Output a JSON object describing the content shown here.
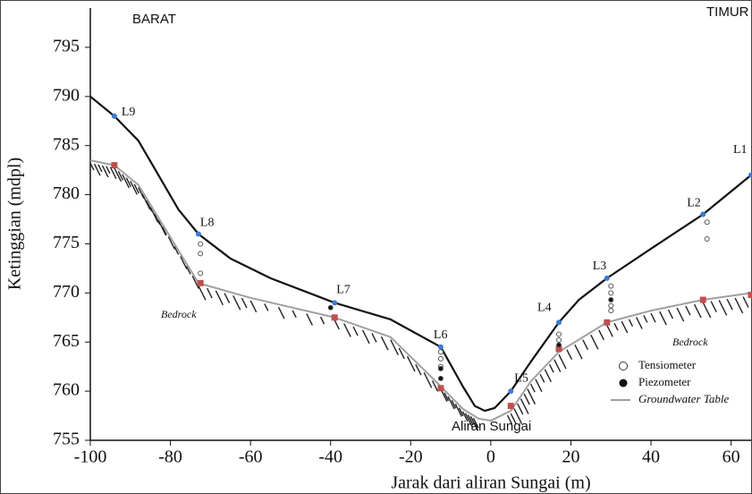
{
  "chart_data": {
    "type": "line",
    "xlabel": "Jarak dari aliran Sungai (m)",
    "ylabel": "Ketinggian (mdpl)",
    "xlim": [
      -100,
      65
    ],
    "ylim": [
      755,
      799
    ],
    "xticks": [
      -100,
      -80,
      -60,
      -40,
      -20,
      0,
      20,
      40,
      60
    ],
    "yticks": [
      755,
      760,
      765,
      770,
      775,
      780,
      785,
      790,
      795
    ],
    "annotations": [
      "BARAT",
      "TIMUR",
      "Bedrock",
      "Bedrock",
      "Aliran Sungai"
    ],
    "series": [
      {
        "color": "#111111",
        "x": [
          -100,
          -94,
          -88,
          -83,
          -78,
          -73,
          -65,
          -55,
          -39,
          -25,
          -12.5,
          -7,
          -4,
          -1.5,
          1,
          5,
          10,
          17,
          22,
          29,
          40,
          53,
          65
        ],
        "values": [
          790,
          788,
          785.5,
          782,
          778.5,
          776,
          773.5,
          771.5,
          769,
          767.3,
          764.5,
          760.5,
          758.5,
          758,
          758.3,
          760,
          763,
          767,
          769.3,
          771.5,
          774.5,
          778,
          782
        ]
      },
      {
        "name": "Groundwater Table",
        "color": "#a0a0a0",
        "x": [
          -100,
          -94,
          -88,
          -82,
          -73,
          -60,
          -39,
          -25,
          -12.5,
          -7,
          -3,
          0,
          5,
          10,
          17,
          29,
          40,
          53,
          65
        ],
        "values": [
          783.5,
          783,
          781,
          777,
          771,
          769.5,
          767.5,
          765.5,
          760.5,
          758.2,
          757.2,
          757,
          758,
          761,
          764,
          767,
          768.2,
          769.3,
          770
        ]
      }
    ],
    "stations": {
      "color": "#3a7bd5",
      "labels": [
        "L9",
        "L8",
        "L7",
        "L6",
        "L5",
        "L4",
        "L3",
        "L2",
        "L1"
      ],
      "x": [
        -94,
        -73,
        -39,
        -12.5,
        5,
        17,
        29,
        53,
        65
      ],
      "values": [
        788,
        776,
        769,
        764.5,
        760,
        767,
        771.5,
        778,
        782
      ]
    },
    "bedrock_points": {
      "color": "#c0504d",
      "x": [
        -94,
        -72.5,
        -39,
        -12.5,
        5,
        17,
        29,
        53,
        65
      ],
      "values": [
        783,
        771,
        767.5,
        760.3,
        758.5,
        764.3,
        767,
        769.3,
        769.8
      ]
    },
    "instruments": [
      {
        "name": "Tensiometer",
        "x": [
          -72.5,
          -72.5,
          -72.5,
          -12.5,
          -12.5,
          -12.5,
          17,
          17,
          30,
          30,
          30,
          30,
          54,
          54
        ],
        "values": [
          775,
          774,
          772,
          764,
          763.3,
          762.5,
          765.8,
          765.2,
          770.7,
          770,
          768.7,
          768.2,
          777.2,
          775.5
        ]
      },
      {
        "name": "Piezometer",
        "x": [
          -40,
          -12.5,
          -12.5,
          17,
          30
        ],
        "values": [
          768.5,
          762.3,
          761.3,
          764.7,
          769.3
        ]
      }
    ]
  }
}
